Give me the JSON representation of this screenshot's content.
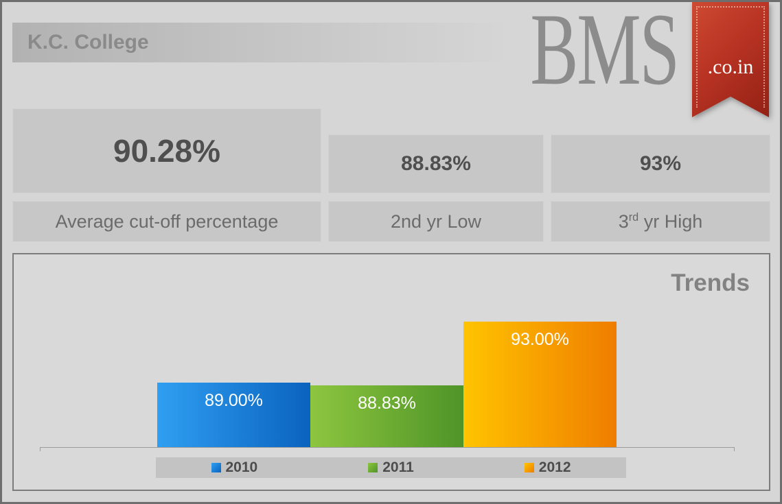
{
  "header": {
    "title": "K.C. College"
  },
  "logo": {
    "text": "BMS",
    "ribbon_text": ".co.in",
    "ribbon_color": "#b83323"
  },
  "stats": {
    "main": {
      "value": "90.28%",
      "label": "Average cut-off percentage"
    },
    "second": {
      "value": "88.83%",
      "label": "2nd yr Low"
    },
    "third": {
      "value": "93%",
      "label_base": "3",
      "label_sup": "rd",
      "label_rest": " yr High"
    }
  },
  "chart_data": {
    "type": "bar",
    "title": "Trends",
    "categories": [
      "2010",
      "2011",
      "2012"
    ],
    "values": [
      89.0,
      88.83,
      93.0
    ],
    "data_labels": [
      "89.00%",
      "88.83%",
      "93.00%"
    ],
    "colors": [
      {
        "light": "#2f9ff2",
        "dark": "#0a63be"
      },
      {
        "light": "#8dc63f",
        "dark": "#4f9428"
      },
      {
        "light": "#ffc400",
        "dark": "#ef7d00"
      }
    ],
    "xlabel": "",
    "ylabel": "",
    "ylim": [
      84.8,
      93
    ],
    "grid": false,
    "legend_position": "bottom"
  }
}
